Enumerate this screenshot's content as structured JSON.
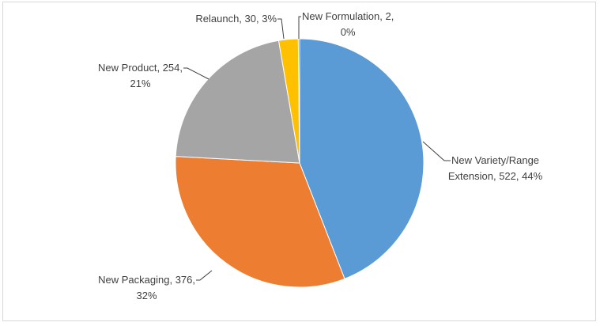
{
  "chart_data": {
    "type": "pie",
    "title": "",
    "start_angle_deg": 0,
    "direction": "clockwise",
    "slices": [
      {
        "label": "New Variety/Range Extension",
        "value": 522,
        "percent_label": "44%",
        "color": "#5b9bd5",
        "label_lines": [
          "New Variety/Range",
          "Extension, 522, 44%"
        ]
      },
      {
        "label": "New Packaging",
        "value": 376,
        "percent_label": "32%",
        "color": "#ed7d31",
        "label_lines": [
          "New Packaging, 376,",
          "32%"
        ]
      },
      {
        "label": "New Product",
        "value": 254,
        "percent_label": "21%",
        "color": "#a5a5a5",
        "label_lines": [
          "New Product, 254,",
          "21%"
        ]
      },
      {
        "label": "Relaunch",
        "value": 30,
        "percent_label": "3%",
        "color": "#ffc000",
        "label_lines": [
          "Relaunch, 30, 3%"
        ]
      },
      {
        "label": "New Formulation",
        "value": 2,
        "percent_label": "0%",
        "color": "#4472c4",
        "label_lines": [
          "New Formulation, 2,",
          "0%"
        ]
      }
    ]
  }
}
